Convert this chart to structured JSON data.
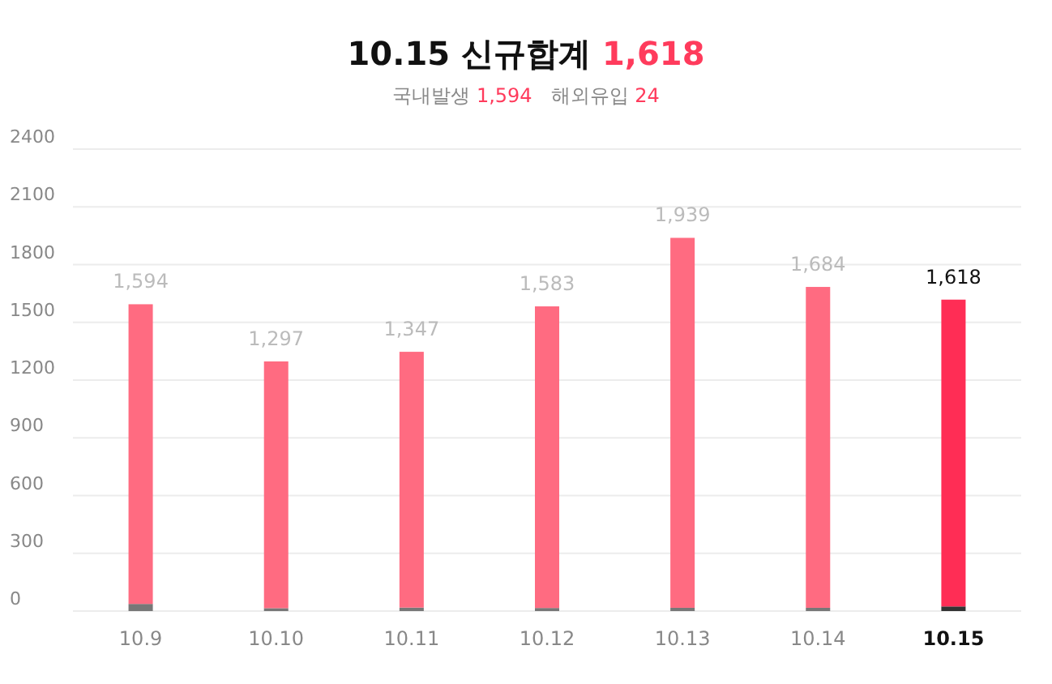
{
  "chart_data": {
    "type": "bar",
    "title": "10.15 신규합계 1,618",
    "subtitle": "국내발생 1,594   해외유입 24",
    "stacked": true,
    "categories": [
      "10.9",
      "10.10",
      "10.11",
      "10.12",
      "10.13",
      "10.14",
      "10.15"
    ],
    "series": [
      {
        "color": "#777777",
        "colors": [
          "#777777",
          "#777777",
          "#777777",
          "#777777",
          "#777777",
          "#777777",
          "#333333"
        ],
        "values": [
          37,
          15,
          18,
          16,
          17,
          17,
          24
        ]
      },
      {
        "color": "#ff6b81",
        "colors": [
          "#ff6b81",
          "#ff6b81",
          "#ff6b81",
          "#ff6b81",
          "#ff6b81",
          "#ff6b81",
          "#ff2d55"
        ],
        "values": [
          1557,
          1282,
          1329,
          1567,
          1922,
          1667,
          1594
        ]
      }
    ],
    "totals": [
      "1,594",
      "1,297",
      "1,347",
      "1,583",
      "1,939",
      "1,684",
      "1,618"
    ],
    "ylim": [
      0,
      2400
    ],
    "yticks": [
      0,
      300,
      600,
      900,
      1200,
      1500,
      1800,
      2100,
      2400
    ],
    "grid": "y"
  }
}
